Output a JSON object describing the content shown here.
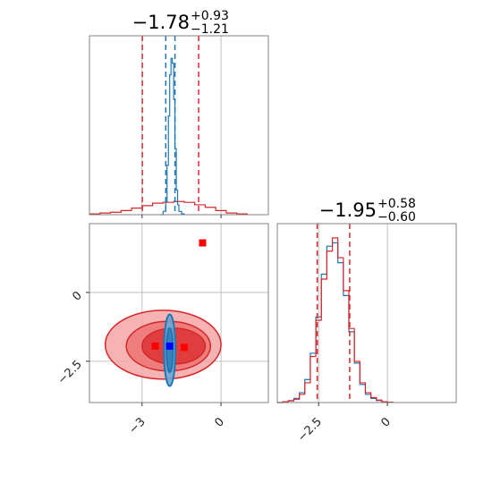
{
  "chart_data": {
    "type": "corner",
    "colors": {
      "primary": "#d62728",
      "secondary": "#1f77b4",
      "marker": "#ff0000",
      "marker2": "#0000ff",
      "grid": "#b0b0b0"
    },
    "panels": [
      {
        "id": "marginal_param1",
        "type": "histogram",
        "title": {
          "median": "−1.78",
          "plus": "+0.93",
          "minus": "−1.21"
        },
        "xlim": [
          -5.0,
          1.8
        ],
        "xticks": [
          -3,
          0
        ],
        "quantile_lines_red": [
          -2.99,
          -0.85
        ],
        "quantile_lines_blue": [
          -2.1,
          -1.75
        ],
        "series": [
          {
            "name": "red",
            "bins_x": [
              -5.0,
              -4.6,
              -4.2,
              -3.8,
              -3.4,
              -3.0,
              -2.6,
              -2.2,
              -1.8,
              -1.4,
              -1.0,
              -0.6,
              -0.2,
              0.2,
              0.6,
              1.0
            ],
            "counts": [
              0.005,
              0.01,
              0.015,
              0.025,
              0.04,
              0.055,
              0.07,
              0.075,
              0.08,
              0.075,
              0.06,
              0.045,
              0.025,
              0.01,
              0.005,
              0.0
            ]
          },
          {
            "name": "blue",
            "bins_x": [
              -2.3,
              -2.2,
              -2.1,
              -2.05,
              -2.0,
              -1.95,
              -1.9,
              -1.85,
              -1.8,
              -1.75,
              -1.7,
              -1.65,
              -1.6,
              -1.5,
              -1.4
            ],
            "counts": [
              0.0,
              0.02,
              0.08,
              0.3,
              0.6,
              0.85,
              0.95,
              0.92,
              0.7,
              0.4,
              0.15,
              0.06,
              0.02,
              0.005,
              0.0
            ]
          }
        ]
      },
      {
        "id": "joint",
        "type": "contour",
        "xlim": [
          -5.0,
          1.8
        ],
        "ylim": [
          -4.0,
          2.5
        ],
        "xticks": [
          -3,
          0
        ],
        "yticks": [
          0.0,
          -2.5
        ],
        "red_contours": [
          {
            "cx": -2.2,
            "cy": -1.9,
            "rx": 2.2,
            "ry": 1.25
          },
          {
            "cx": -2.0,
            "cy": -1.95,
            "rx": 1.6,
            "ry": 0.9
          },
          {
            "cx": -1.8,
            "cy": -1.95,
            "rx": 1.2,
            "ry": 0.65
          }
        ],
        "blue_contours": [
          {
            "cx": -1.95,
            "cy": -2.1,
            "rx": 0.22,
            "ry": 1.3
          },
          {
            "cx": -1.95,
            "cy": -2.1,
            "rx": 0.12,
            "ry": 0.8
          }
        ],
        "markers": [
          {
            "x": -0.7,
            "y": 1.8,
            "color": "red"
          },
          {
            "x": -2.5,
            "y": -1.95,
            "color": "red"
          },
          {
            "x": -1.4,
            "y": -2.0,
            "color": "red"
          },
          {
            "x": -1.95,
            "y": -1.95,
            "color": "blue"
          }
        ]
      },
      {
        "id": "marginal_param2",
        "type": "histogram",
        "title": {
          "median": "−1.95",
          "plus": "+0.58",
          "minus": "−0.60"
        },
        "xlim": [
          -4.0,
          2.5
        ],
        "xticks": [
          -2.5,
          0.0
        ],
        "quantile_lines_red": [
          -2.55,
          -1.37
        ],
        "series": [
          {
            "name": "red",
            "bins_x": [
              -4.0,
              -3.8,
              -3.6,
              -3.4,
              -3.2,
              -3.0,
              -2.8,
              -2.6,
              -2.4,
              -2.2,
              -2.0,
              -1.8,
              -1.6,
              -1.4,
              -1.2,
              -1.0,
              -0.8,
              -0.6,
              -0.4,
              -0.2,
              0.0,
              0.2
            ],
            "counts": [
              0.0,
              0.005,
              0.01,
              0.02,
              0.05,
              0.12,
              0.28,
              0.5,
              0.75,
              0.92,
              1.0,
              0.88,
              0.68,
              0.45,
              0.25,
              0.12,
              0.06,
              0.03,
              0.015,
              0.005,
              0.002,
              0.0
            ]
          },
          {
            "name": "blue",
            "bins_x": [
              -4.0,
              -3.8,
              -3.6,
              -3.4,
              -3.2,
              -3.0,
              -2.8,
              -2.6,
              -2.4,
              -2.2,
              -2.0,
              -1.8,
              -1.6,
              -1.4,
              -1.2,
              -1.0,
              -0.8,
              -0.6,
              -0.4,
              -0.2,
              0.0,
              0.2
            ],
            "counts": [
              0.0,
              0.004,
              0.012,
              0.025,
              0.06,
              0.14,
              0.3,
              0.52,
              0.78,
              0.95,
              0.97,
              0.85,
              0.65,
              0.43,
              0.24,
              0.11,
              0.05,
              0.025,
              0.012,
              0.004,
              0.001,
              0.0
            ]
          }
        ]
      }
    ]
  }
}
